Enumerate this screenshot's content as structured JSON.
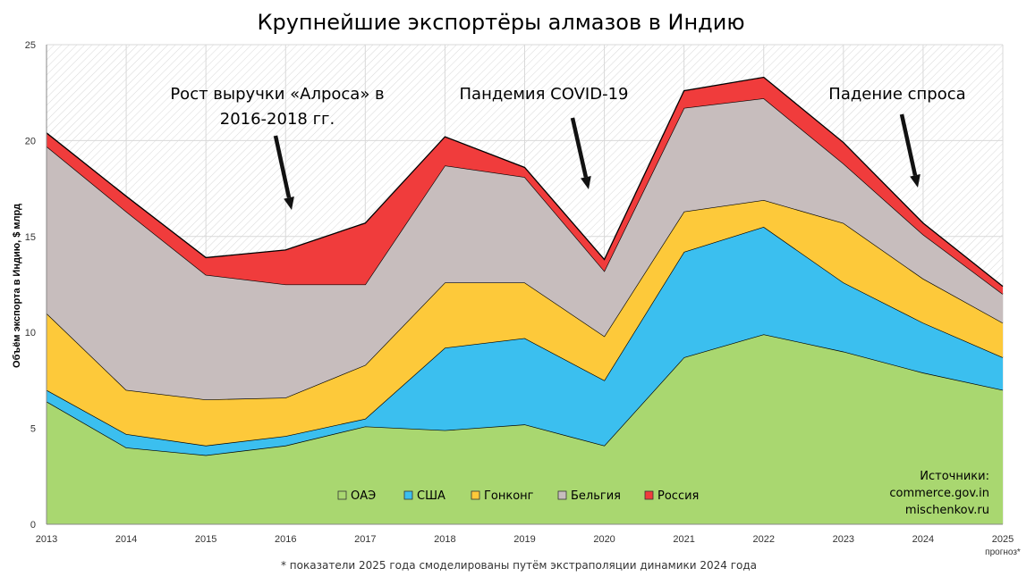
{
  "chart_data": {
    "type": "area",
    "stacked": true,
    "title": "Крупнейшие экспортёры алмазов в Индию",
    "ylabel": "Объём экспорта в Индию, $ млрд",
    "xlabel": "",
    "x": [
      "2013",
      "2014",
      "2015",
      "2016",
      "2017",
      "2018",
      "2019",
      "2020",
      "2021",
      "2022",
      "2023",
      "2024",
      "2025"
    ],
    "x_note": "прогноз*",
    "ylim": [
      0,
      25
    ],
    "yticks": [
      "0",
      "5",
      "10",
      "15",
      "20",
      "25"
    ],
    "grid": true,
    "legend_position": "bottom-center",
    "series": [
      {
        "name": "ОАЭ",
        "color": "#a9d770",
        "values": [
          6.4,
          4.0,
          3.6,
          4.1,
          5.1,
          4.9,
          5.2,
          4.1,
          8.7,
          9.9,
          9.0,
          7.9,
          7.0
        ]
      },
      {
        "name": "США",
        "color": "#3bbfef",
        "values": [
          0.6,
          0.7,
          0.5,
          0.5,
          0.4,
          4.3,
          4.5,
          3.4,
          5.5,
          5.6,
          3.6,
          2.6,
          1.7
        ]
      },
      {
        "name": "Гонконг",
        "color": "#fdc93a",
        "values": [
          4.0,
          2.3,
          2.4,
          2.0,
          2.8,
          3.4,
          2.9,
          2.3,
          2.1,
          1.4,
          3.1,
          2.3,
          1.8
        ]
      },
      {
        "name": "Бельгия",
        "color": "#c7bdbd",
        "values": [
          8.7,
          9.3,
          6.5,
          5.9,
          4.2,
          6.1,
          5.5,
          3.4,
          5.4,
          5.3,
          3.1,
          2.3,
          1.5
        ]
      },
      {
        "name": "Россия",
        "color": "#f03c3c",
        "values": [
          0.7,
          0.8,
          0.9,
          1.8,
          3.2,
          1.5,
          0.5,
          0.6,
          0.9,
          1.1,
          1.1,
          0.6,
          0.4
        ]
      }
    ],
    "annotations": [
      {
        "lines": [
          "Рост выручки «Алроса» в",
          "2016-2018 гг."
        ]
      },
      {
        "lines": [
          "Пандемия COVID-19"
        ]
      },
      {
        "lines": [
          "Падение спроса"
        ]
      }
    ],
    "sources": [
      "Источники:",
      "commerce.gov.in",
      "mischenkov.ru"
    ],
    "footnote": "* показатели 2025 года смоделированы путём экстраполяции динамики 2024 года"
  }
}
